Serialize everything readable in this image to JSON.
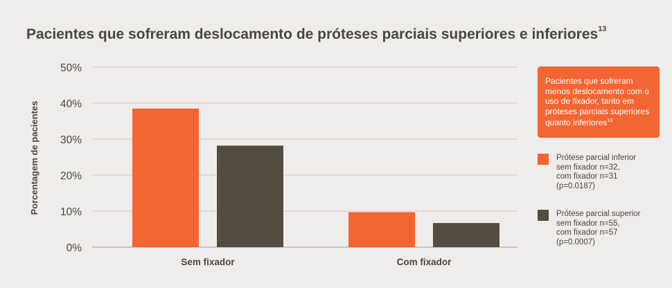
{
  "title": "Pacientes que sofreram deslocamento de próteses parciais superiores e inferiores",
  "title_sup": "13",
  "callout": {
    "text": "Pacientes que sofreram menos deslocamento com o uso de fixador, tanto em próteses parciais superiores quanto inferiores",
    "sup": "13"
  },
  "legend": [
    {
      "label": "Prótese parcial inferior",
      "lines": [
        "sem fixador n=32,",
        "com fixador n=31",
        "(p=0.0187)"
      ],
      "color": "#f26633"
    },
    {
      "label": "Prótese parcial superior",
      "lines": [
        "sem fixador n=55,",
        "com fixador n=57",
        "(p=0.0007)"
      ],
      "color": "#534c40"
    }
  ],
  "chart_data": {
    "type": "bar",
    "title": "Pacientes que sofreram deslocamento de próteses parciais superiores e inferiores",
    "categories": [
      "Sem fixador",
      "Com fixador"
    ],
    "series": [
      {
        "name": "Prótese parcial inferior",
        "values": [
          38.5,
          9.7
        ],
        "color": "#f26633"
      },
      {
        "name": "Prótese parcial superior",
        "values": [
          28.2,
          6.7
        ],
        "color": "#534c40"
      }
    ],
    "ylabel": "Porcentagem de pacientes",
    "xlabel": "",
    "ylim": [
      0,
      50
    ],
    "yticks": [
      0,
      10,
      20,
      30,
      40,
      50
    ],
    "ytick_labels": [
      "0%",
      "10%",
      "20%",
      "30%",
      "40%",
      "50%"
    ],
    "grid": true,
    "legend_position": "right"
  }
}
